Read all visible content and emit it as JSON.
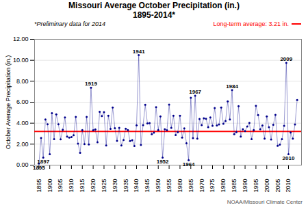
{
  "chart_data": {
    "type": "line",
    "title": "Missouri Average October Precipitation (in.)",
    "subtitle": "1895-2014*",
    "ylabel": "October Average Precipitation (in.)",
    "note": "*Preliminary data for 2014",
    "source": "NOAA/Missouri Climate Center",
    "color": "#00008B",
    "marker": "o",
    "grid": "y",
    "xlim": [
      1893,
      2016
    ],
    "xticks": [
      1895,
      1900,
      1905,
      1910,
      1915,
      1920,
      1925,
      1930,
      1935,
      1940,
      1945,
      1950,
      1955,
      1960,
      1965,
      1970,
      1975,
      1980,
      1985,
      1990,
      1995,
      2000,
      2005,
      2010
    ],
    "ylim": [
      0.0,
      12.0
    ],
    "yticks": [
      {
        "value": 0,
        "label": "0.00"
      },
      {
        "value": 2,
        "label": "2.00"
      },
      {
        "value": 4,
        "label": "4.00"
      },
      {
        "value": 6,
        "label": "6.00"
      },
      {
        "value": 8,
        "label": "8.00"
      },
      {
        "value": 10,
        "label": "10.00"
      },
      {
        "value": 12,
        "label": "12.00"
      }
    ],
    "reference_line": {
      "value": 3.21,
      "label": "Long-term average: 3.21 in.",
      "color": "#FF0000"
    },
    "annotations": [
      {
        "x": 1919,
        "label": "1919",
        "position": "above"
      },
      {
        "x": 1941,
        "label": "1941",
        "position": "above"
      },
      {
        "x": 1967,
        "label": "1967",
        "position": "above"
      },
      {
        "x": 1984,
        "label": "1984",
        "position": "above"
      },
      {
        "x": 2009,
        "label": "2009",
        "position": "above"
      },
      {
        "x": 1895,
        "label": "1895",
        "position": "below"
      },
      {
        "x": 1897,
        "label": "1897",
        "position": "below"
      },
      {
        "x": 1952,
        "label": "1952",
        "position": "below"
      },
      {
        "x": 1964,
        "label": "1964",
        "position": "below"
      },
      {
        "x": 2010,
        "label": "2010",
        "position": "below"
      }
    ],
    "x": [
      1895,
      1896,
      1897,
      1898,
      1899,
      1900,
      1901,
      1902,
      1903,
      1904,
      1905,
      1906,
      1907,
      1908,
      1909,
      1910,
      1911,
      1912,
      1913,
      1914,
      1915,
      1916,
      1917,
      1918,
      1919,
      1920,
      1921,
      1922,
      1923,
      1924,
      1925,
      1926,
      1927,
      1928,
      1929,
      1930,
      1931,
      1932,
      1933,
      1934,
      1935,
      1936,
      1937,
      1938,
      1939,
      1940,
      1941,
      1942,
      1943,
      1944,
      1945,
      1946,
      1947,
      1948,
      1949,
      1950,
      1951,
      1952,
      1953,
      1954,
      1955,
      1956,
      1957,
      1958,
      1959,
      1960,
      1961,
      1962,
      1963,
      1964,
      1965,
      1966,
      1967,
      1968,
      1969,
      1970,
      1971,
      1972,
      1973,
      1974,
      1975,
      1976,
      1977,
      1978,
      1979,
      1980,
      1981,
      1982,
      1983,
      1984,
      1985,
      1986,
      1987,
      1988,
      1989,
      1990,
      1991,
      1992,
      1993,
      1994,
      1995,
      1996,
      1997,
      1998,
      1999,
      2000,
      2001,
      2002,
      2003,
      2004,
      2005,
      2006,
      2007,
      2008,
      2009,
      2010,
      2011,
      2012,
      2013,
      2014
    ],
    "values": [
      0.14,
      2.6,
      0.72,
      4.35,
      3.9,
      1.05,
      4.95,
      2.48,
      4.85,
      3.9,
      2.46,
      3.38,
      4.55,
      2.72,
      2.62,
      2.68,
      2.85,
      4.6,
      2.05,
      1.18,
      3.34,
      2.0,
      4.6,
      1.98,
      7.38,
      3.32,
      3.4,
      2.18,
      5.08,
      4.68,
      5.05,
      1.87,
      4.72,
      3.45,
      5.5,
      3.52,
      2.32,
      3.55,
      1.87,
      2.4,
      3.48,
      3.35,
      2.3,
      2.38,
      1.82,
      3.8,
      10.5,
      1.92,
      3.82,
      5.75,
      3.98,
      4.01,
      2.95,
      3.1,
      5.52,
      3.35,
      4.65,
      0.72,
      3.42,
      3.32,
      5.77,
      3.55,
      4.72,
      2.87,
      3.15,
      4.72,
      2.62,
      3.5,
      2.08,
      0.48,
      6.42,
      2.58,
      6.62,
      2.52,
      4.4,
      3.82,
      4.47,
      4.42,
      3.62,
      4.55,
      3.75,
      5.45,
      3.78,
      3.88,
      5.5,
      3.95,
      4.2,
      6.08,
      4.35,
      7.15,
      2.95,
      3.15,
      5.62,
      2.72,
      3.42,
      3.25,
      3.68,
      4.02,
      2.48,
      3.35,
      5.65,
      4.78,
      3.42,
      3.78,
      2.52,
      4.65,
      3.62,
      2.45,
      3.85,
      4.8,
      1.85,
      1.95,
      2.48,
      3.75,
      9.75,
      1.05,
      3.12,
      2.52,
      3.88,
      6.22
    ]
  }
}
